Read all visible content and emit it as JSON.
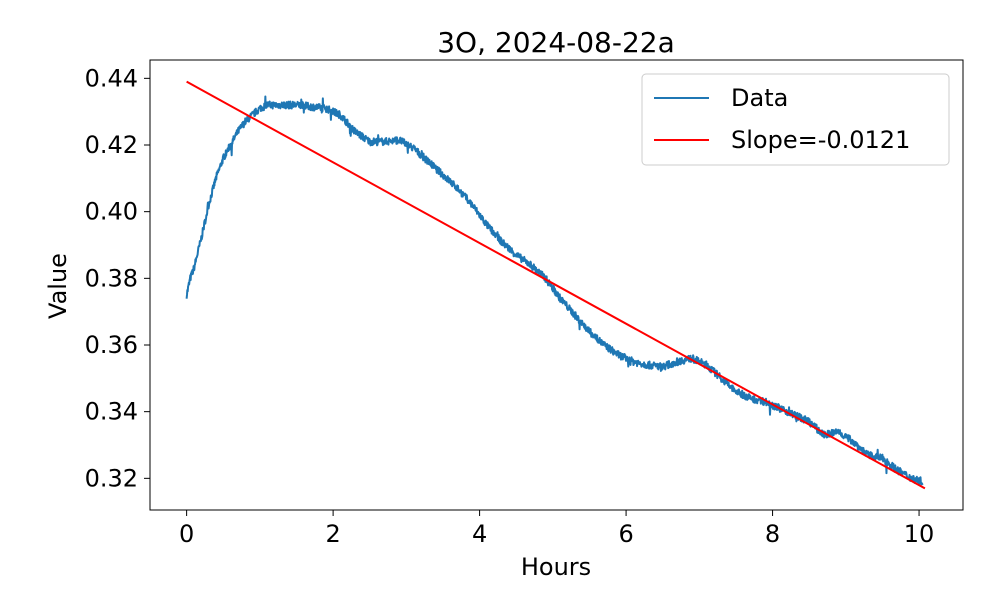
{
  "chart_data": {
    "type": "line",
    "title": "3O, 2024-08-22a",
    "xlabel": "Hours",
    "ylabel": "Value",
    "xlim": [
      -0.5,
      10.6
    ],
    "ylim": [
      0.3105,
      0.4455
    ],
    "xticks": [
      0,
      2,
      4,
      6,
      8,
      10
    ],
    "yticks": [
      0.32,
      0.34,
      0.36,
      0.38,
      0.4,
      0.42,
      0.44
    ],
    "ytick_labels": [
      "0.32",
      "0.34",
      "0.36",
      "0.38",
      "0.40",
      "0.42",
      "0.44"
    ],
    "grid": false,
    "legend_position": "top-right",
    "series": [
      {
        "name": "Data",
        "color": "#1f77b4",
        "noise": 0.0011,
        "x": [
          0,
          0.05,
          0.1,
          0.2,
          0.3,
          0.4,
          0.5,
          0.6,
          0.7,
          0.8,
          0.9,
          1.0,
          1.1,
          1.3,
          1.5,
          1.7,
          1.9,
          2.1,
          2.3,
          2.5,
          2.7,
          2.9,
          3.1,
          3.3,
          3.5,
          3.7,
          3.9,
          4.1,
          4.3,
          4.5,
          4.7,
          4.9,
          5.1,
          5.3,
          5.5,
          5.7,
          5.9,
          6.1,
          6.3,
          6.5,
          6.7,
          6.9,
          7.1,
          7.3,
          7.5,
          7.7,
          7.9,
          8.1,
          8.3,
          8.5,
          8.7,
          8.9,
          9.1,
          9.3,
          9.5,
          9.7,
          9.9,
          10.05
        ],
        "y": [
          0.375,
          0.38,
          0.383,
          0.392,
          0.402,
          0.41,
          0.416,
          0.42,
          0.424,
          0.427,
          0.429,
          0.431,
          0.432,
          0.432,
          0.432,
          0.4315,
          0.431,
          0.429,
          0.424,
          0.421,
          0.421,
          0.4215,
          0.419,
          0.415,
          0.411,
          0.407,
          0.402,
          0.396,
          0.391,
          0.387,
          0.384,
          0.38,
          0.374,
          0.369,
          0.364,
          0.36,
          0.357,
          0.355,
          0.354,
          0.3535,
          0.355,
          0.356,
          0.354,
          0.35,
          0.346,
          0.344,
          0.343,
          0.341,
          0.339,
          0.337,
          0.333,
          0.334,
          0.331,
          0.327,
          0.326,
          0.3225,
          0.32,
          0.319
        ]
      },
      {
        "name": "Slope=-0.0121",
        "color": "#ff0000",
        "x": [
          0,
          10.08
        ],
        "y": [
          0.439,
          0.317
        ]
      }
    ]
  }
}
